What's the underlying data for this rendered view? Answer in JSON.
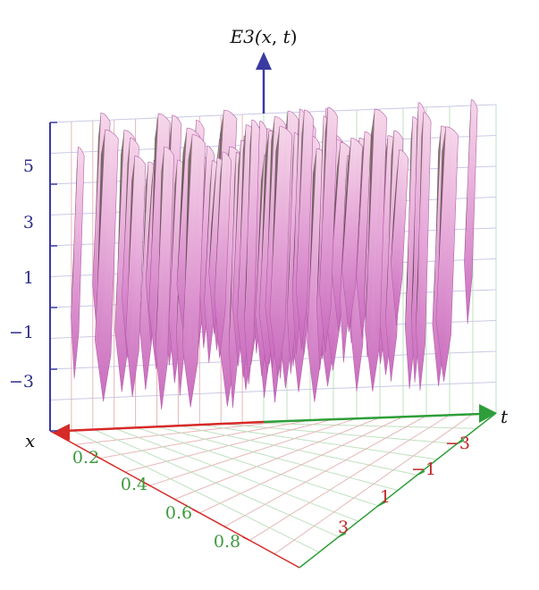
{
  "chart_data": {
    "type": "surface-3d",
    "zlabel_parts": [
      "E3(",
      "x",
      ", ",
      "t",
      ")"
    ],
    "xlabel": "x",
    "tlabel": "t",
    "x_ticks": [
      "0.2",
      "0.4",
      "0.6",
      "0.8"
    ],
    "t_ticks": [
      "−3",
      "−1",
      "1",
      "3"
    ],
    "z_ticks": [
      "5",
      "3",
      "1",
      "−1",
      "−3"
    ],
    "x_range": [
      0,
      1
    ],
    "t_range": [
      -4,
      4
    ],
    "z_range": [
      -5,
      5
    ],
    "grid": true,
    "colors": {
      "x_axis": "#d62a28",
      "t_axis": "#2e9e3a",
      "z_axis": "#3a3aa0",
      "x_tick_text": "#3c9a3c",
      "t_tick_text": "#c0282a",
      "z_tick_text": "#2e2e8c",
      "surface_light": "#f2b6df",
      "surface_mid": "#d884c9",
      "surface_dark": "#3f3c30"
    }
  }
}
